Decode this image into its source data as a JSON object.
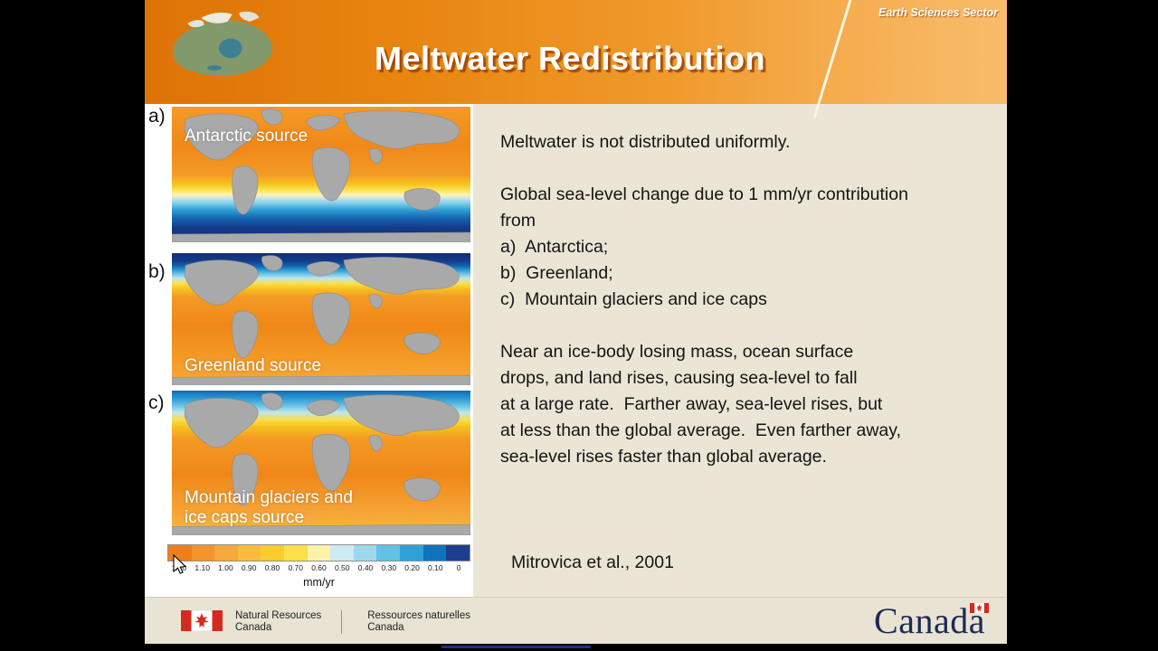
{
  "header": {
    "sector_label": "Earth Sciences Sector",
    "title": "Meltwater Redistribution"
  },
  "maps": {
    "a": {
      "letter": "a)",
      "label": "Antarctic source"
    },
    "b": {
      "letter": "b)",
      "label": "Greenland source"
    },
    "c": {
      "letter": "c)",
      "label": "Mountain glaciers and\nice caps source"
    }
  },
  "colorbar": {
    "ticks": [
      "1.20",
      "1.10",
      "1.00",
      "0.90",
      "0.80",
      "0.70",
      "0.60",
      "0.50",
      "0.40",
      "0.30",
      "0.20",
      "0.10",
      "0"
    ],
    "colors": [
      "#EF7F1B",
      "#F3942C",
      "#F6A93C",
      "#F9BC3F",
      "#FBCB2F",
      "#FDE04A",
      "#FEF2A8",
      "#CFEAF3",
      "#9ED8ED",
      "#62C1E5",
      "#2EA2D8",
      "#0F74BC",
      "#1D3E90"
    ],
    "unit": "mm/yr"
  },
  "content": {
    "para1": "Meltwater is not distributed uniformly.",
    "para2": "Global sea-level change due to 1 mm/yr contribution\nfrom",
    "list": [
      "a)  Antarctica;",
      "b)  Greenland;",
      "c)  Mountain glaciers and ice caps"
    ],
    "para3": "Near an ice-body losing mass, ocean surface\ndrops, and land rises, causing sea-level to fall\nat a large rate.  Farther away, sea-level rises, but\nat less than the global average.  Even farther away,\nsea-level rises faster than global average.",
    "citation": "Mitrovica et al., 2001"
  },
  "footer": {
    "dept_en": "Natural Resources\nCanada",
    "dept_fr": "Ressources naturelles\nCanada",
    "wordmark": "Canada"
  },
  "colors": {
    "header_orange": "#E8850F",
    "slide_beige": "#EBE5D6",
    "wordmark_navy": "#1C2B55",
    "flag_red": "#D52B1E"
  }
}
